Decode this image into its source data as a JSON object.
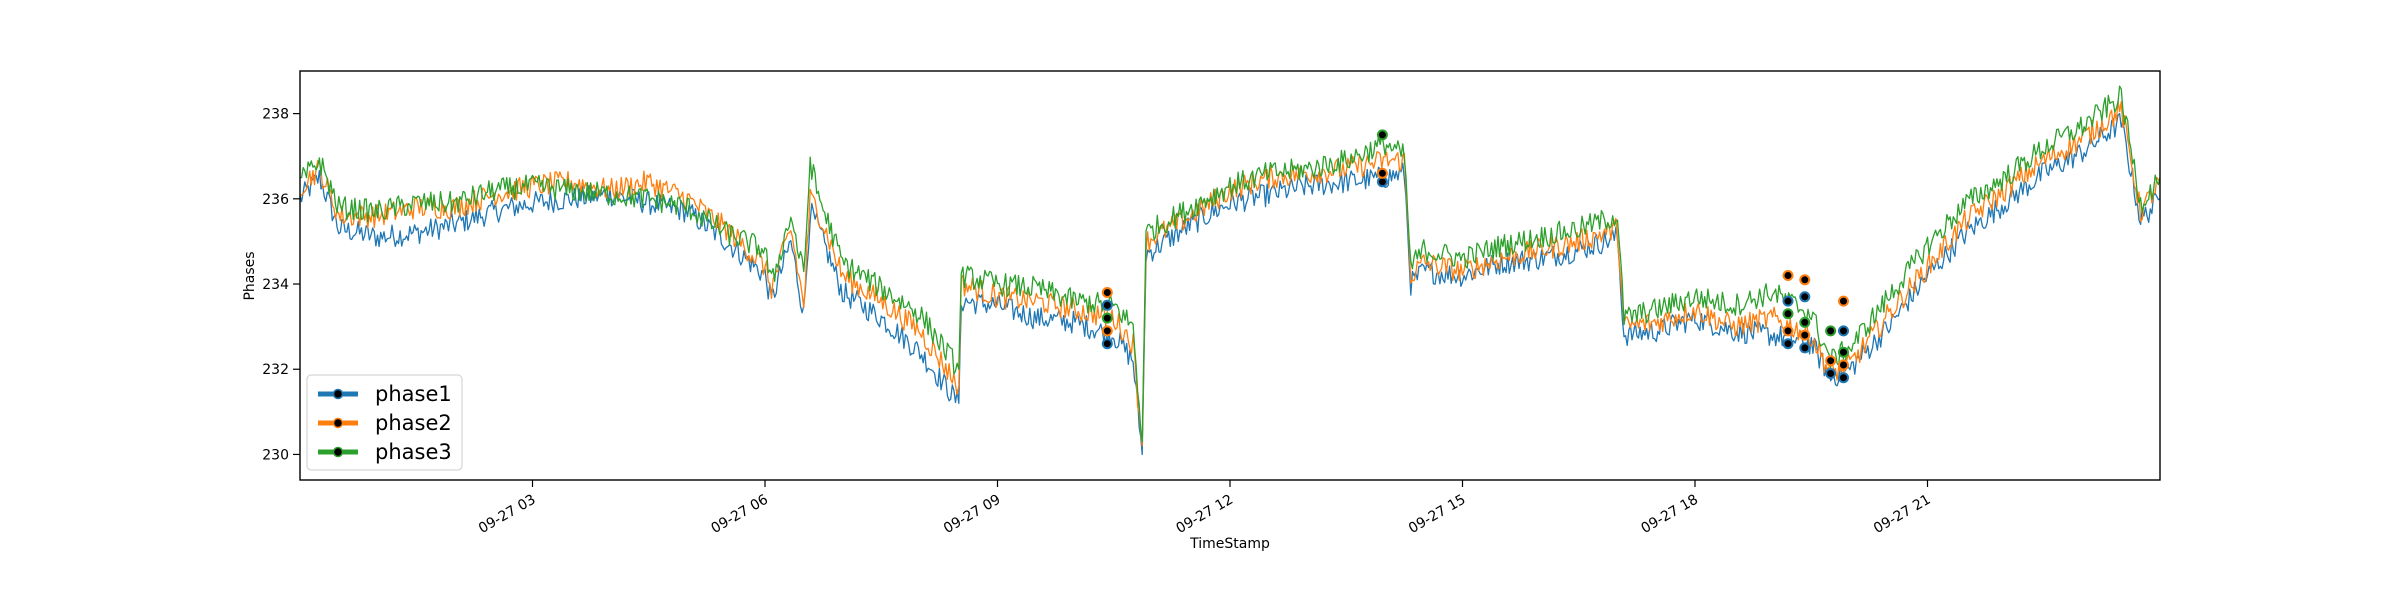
{
  "chart_data": {
    "type": "line",
    "title": "",
    "xlabel": "TimeStamp",
    "ylabel": "Phases",
    "xlim": [
      "2019-09-27 00:00",
      "2019-09-28 00:00"
    ],
    "ylim": [
      229.4,
      239.0
    ],
    "x_tick_labels": [
      "09-27 03",
      "09-27 06",
      "09-27 09",
      "09-27 12",
      "09-27 15",
      "09-27 18",
      "09-27 21"
    ],
    "y_tick_labels": [
      "230",
      "232",
      "234",
      "236",
      "238"
    ],
    "grid": false,
    "legend_position": "lower-left",
    "series": [
      {
        "name": "phase1",
        "color": "#1f77b4",
        "points": [
          [
            "00:00",
            236.0
          ],
          [
            "00:15",
            236.5
          ],
          [
            "00:30",
            235.3
          ],
          [
            "01:00",
            235.1
          ],
          [
            "01:30",
            235.2
          ],
          [
            "02:00",
            235.4
          ],
          [
            "02:30",
            235.7
          ],
          [
            "03:00",
            235.9
          ],
          [
            "03:30",
            236.0
          ],
          [
            "04:00",
            236.1
          ],
          [
            "04:30",
            235.9
          ],
          [
            "05:00",
            235.7
          ],
          [
            "05:30",
            235.0
          ],
          [
            "06:00",
            234.2
          ],
          [
            "06:05",
            233.6
          ],
          [
            "06:20",
            235.0
          ],
          [
            "06:30",
            233.3
          ],
          [
            "06:35",
            235.7
          ],
          [
            "06:40",
            235.4
          ],
          [
            "07:00",
            233.8
          ],
          [
            "07:30",
            233.2
          ],
          [
            "08:00",
            232.4
          ],
          [
            "08:30",
            231.2
          ],
          [
            "08:32",
            233.6
          ],
          [
            "09:00",
            233.5
          ],
          [
            "09:30",
            233.2
          ],
          [
            "10:00",
            233.1
          ],
          [
            "10:30",
            232.8
          ],
          [
            "10:45",
            232.2
          ],
          [
            "10:52",
            230.0
          ],
          [
            "10:55",
            234.7
          ],
          [
            "11:30",
            235.4
          ],
          [
            "12:00",
            235.9
          ],
          [
            "12:30",
            236.1
          ],
          [
            "13:00",
            236.3
          ],
          [
            "13:30",
            236.4
          ],
          [
            "14:00",
            236.5
          ],
          [
            "14:15",
            236.6
          ],
          [
            "14:20",
            234.0
          ],
          [
            "14:30",
            234.3
          ],
          [
            "15:00",
            234.2
          ],
          [
            "15:30",
            234.5
          ],
          [
            "16:00",
            234.6
          ],
          [
            "16:30",
            234.8
          ],
          [
            "17:00",
            235.1
          ],
          [
            "17:05",
            232.8
          ],
          [
            "17:30",
            232.9
          ],
          [
            "18:00",
            233.2
          ],
          [
            "18:30",
            232.9
          ],
          [
            "19:00",
            232.8
          ],
          [
            "19:30",
            232.6
          ],
          [
            "19:45",
            231.8
          ],
          [
            "20:00",
            232.0
          ],
          [
            "20:30",
            233.0
          ],
          [
            "21:00",
            234.2
          ],
          [
            "21:30",
            235.2
          ],
          [
            "22:00",
            235.9
          ],
          [
            "22:30",
            236.6
          ],
          [
            "23:00",
            237.1
          ],
          [
            "23:30",
            237.8
          ],
          [
            "23:45",
            235.5
          ],
          [
            "24:00",
            236.0
          ]
        ]
      },
      {
        "name": "phase2",
        "color": "#ff7f0e",
        "points": [
          [
            "00:00",
            236.3
          ],
          [
            "00:15",
            236.7
          ],
          [
            "00:30",
            235.6
          ],
          [
            "01:00",
            235.6
          ],
          [
            "01:30",
            235.8
          ],
          [
            "02:00",
            235.8
          ],
          [
            "02:30",
            236.1
          ],
          [
            "03:00",
            236.3
          ],
          [
            "03:30",
            236.4
          ],
          [
            "04:00",
            236.2
          ],
          [
            "04:30",
            236.4
          ],
          [
            "05:00",
            236.0
          ],
          [
            "05:30",
            235.3
          ],
          [
            "06:00",
            234.4
          ],
          [
            "06:05",
            233.9
          ],
          [
            "06:20",
            235.3
          ],
          [
            "06:30",
            233.5
          ],
          [
            "06:35",
            236.0
          ],
          [
            "06:40",
            235.8
          ],
          [
            "07:00",
            234.2
          ],
          [
            "07:30",
            233.6
          ],
          [
            "08:00",
            232.9
          ],
          [
            "08:30",
            231.6
          ],
          [
            "08:32",
            234.0
          ],
          [
            "09:00",
            233.7
          ],
          [
            "09:30",
            233.6
          ],
          [
            "10:00",
            233.4
          ],
          [
            "10:30",
            233.2
          ],
          [
            "10:45",
            232.6
          ],
          [
            "10:52",
            230.2
          ],
          [
            "10:55",
            235.0
          ],
          [
            "11:30",
            235.6
          ],
          [
            "12:00",
            236.2
          ],
          [
            "12:30",
            236.5
          ],
          [
            "13:00",
            236.6
          ],
          [
            "13:30",
            236.7
          ],
          [
            "14:00",
            236.9
          ],
          [
            "14:15",
            236.9
          ],
          [
            "14:20",
            234.2
          ],
          [
            "14:30",
            234.5
          ],
          [
            "15:00",
            234.3
          ],
          [
            "15:30",
            234.6
          ],
          [
            "16:00",
            234.8
          ],
          [
            "16:30",
            235.0
          ],
          [
            "17:00",
            235.3
          ],
          [
            "17:05",
            233.0
          ],
          [
            "17:30",
            233.1
          ],
          [
            "18:00",
            233.4
          ],
          [
            "18:30",
            233.0
          ],
          [
            "19:00",
            233.2
          ],
          [
            "19:30",
            232.8
          ],
          [
            "19:45",
            231.9
          ],
          [
            "20:00",
            232.1
          ],
          [
            "20:30",
            233.3
          ],
          [
            "21:00",
            234.4
          ],
          [
            "21:30",
            235.5
          ],
          [
            "22:00",
            236.2
          ],
          [
            "22:30",
            236.9
          ],
          [
            "23:00",
            237.4
          ],
          [
            "23:30",
            238.1
          ],
          [
            "23:45",
            235.7
          ],
          [
            "24:00",
            236.4
          ]
        ]
      },
      {
        "name": "phase3",
        "color": "#2ca02c",
        "points": [
          [
            "00:00",
            236.4
          ],
          [
            "00:15",
            236.9
          ],
          [
            "00:30",
            235.8
          ],
          [
            "01:00",
            235.7
          ],
          [
            "01:30",
            235.9
          ],
          [
            "02:00",
            235.9
          ],
          [
            "02:30",
            236.2
          ],
          [
            "03:00",
            236.3
          ],
          [
            "03:30",
            236.2
          ],
          [
            "04:00",
            236.1
          ],
          [
            "04:30",
            236.0
          ],
          [
            "05:00",
            235.8
          ],
          [
            "05:30",
            235.2
          ],
          [
            "06:00",
            234.8
          ],
          [
            "06:05",
            234.0
          ],
          [
            "06:20",
            235.6
          ],
          [
            "06:30",
            234.2
          ],
          [
            "06:35",
            236.9
          ],
          [
            "06:40",
            236.2
          ],
          [
            "07:00",
            234.5
          ],
          [
            "07:30",
            233.9
          ],
          [
            "08:00",
            233.3
          ],
          [
            "08:30",
            232.0
          ],
          [
            "08:32",
            234.2
          ],
          [
            "09:00",
            234.0
          ],
          [
            "09:30",
            233.9
          ],
          [
            "10:00",
            233.6
          ],
          [
            "10:30",
            233.5
          ],
          [
            "10:45",
            233.0
          ],
          [
            "10:52",
            230.3
          ],
          [
            "10:55",
            235.2
          ],
          [
            "11:30",
            235.8
          ],
          [
            "12:00",
            236.3
          ],
          [
            "12:30",
            236.6
          ],
          [
            "13:00",
            236.7
          ],
          [
            "13:30",
            236.9
          ],
          [
            "14:00",
            237.3
          ],
          [
            "14:15",
            237.0
          ],
          [
            "14:20",
            234.4
          ],
          [
            "14:30",
            234.8
          ],
          [
            "15:00",
            234.6
          ],
          [
            "15:30",
            234.9
          ],
          [
            "16:00",
            235.1
          ],
          [
            "16:30",
            235.3
          ],
          [
            "17:00",
            235.6
          ],
          [
            "17:05",
            233.2
          ],
          [
            "17:30",
            233.4
          ],
          [
            "18:00",
            233.7
          ],
          [
            "18:30",
            233.5
          ],
          [
            "19:00",
            233.8
          ],
          [
            "19:30",
            233.3
          ],
          [
            "19:45",
            232.2
          ],
          [
            "20:00",
            232.5
          ],
          [
            "20:30",
            233.7
          ],
          [
            "21:00",
            234.9
          ],
          [
            "21:30",
            235.9
          ],
          [
            "22:00",
            236.5
          ],
          [
            "22:30",
            237.2
          ],
          [
            "23:00",
            237.7
          ],
          [
            "23:30",
            238.4
          ],
          [
            "23:45",
            235.9
          ],
          [
            "24:00",
            236.5
          ]
        ]
      }
    ],
    "anomaly_markers": [
      {
        "time": "10:25",
        "values": [
          232.6,
          232.9,
          233.2,
          233.5,
          233.8
        ]
      },
      {
        "time": "13:58",
        "values": [
          236.4,
          236.6,
          237.5
        ]
      },
      {
        "time": "19:12",
        "values": [
          232.6,
          232.9,
          233.3,
          233.6,
          234.2
        ]
      },
      {
        "time": "19:25",
        "values": [
          232.5,
          232.8,
          233.1,
          233.7,
          234.1
        ]
      },
      {
        "time": "19:45",
        "values": [
          231.9,
          232.2,
          232.9
        ]
      },
      {
        "time": "19:55",
        "values": [
          231.8,
          232.1,
          232.4,
          232.9,
          233.6
        ]
      }
    ]
  }
}
